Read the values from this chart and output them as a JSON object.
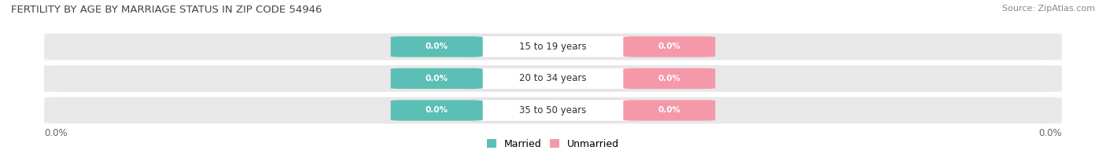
{
  "title": "FERTILITY BY AGE BY MARRIAGE STATUS IN ZIP CODE 54946",
  "source": "Source: ZipAtlas.com",
  "age_groups": [
    "15 to 19 years",
    "20 to 34 years",
    "35 to 50 years"
  ],
  "married_values": [
    0.0,
    0.0,
    0.0
  ],
  "unmarried_values": [
    0.0,
    0.0,
    0.0
  ],
  "married_color": "#5bbfb5",
  "unmarried_color": "#f599aa",
  "background_color": "#ffffff",
  "strip_color_light": "#f5f5f5",
  "strip_color_dark": "#eeeeee",
  "pill_bg_color": "#e8e8e8",
  "center_pill_color": "#ffffff",
  "legend_married": "Married",
  "legend_unmarried": "Unmarried",
  "title_color": "#444444",
  "source_color": "#888888",
  "axis_label_color": "#666666",
  "center_text_color": "#333333"
}
